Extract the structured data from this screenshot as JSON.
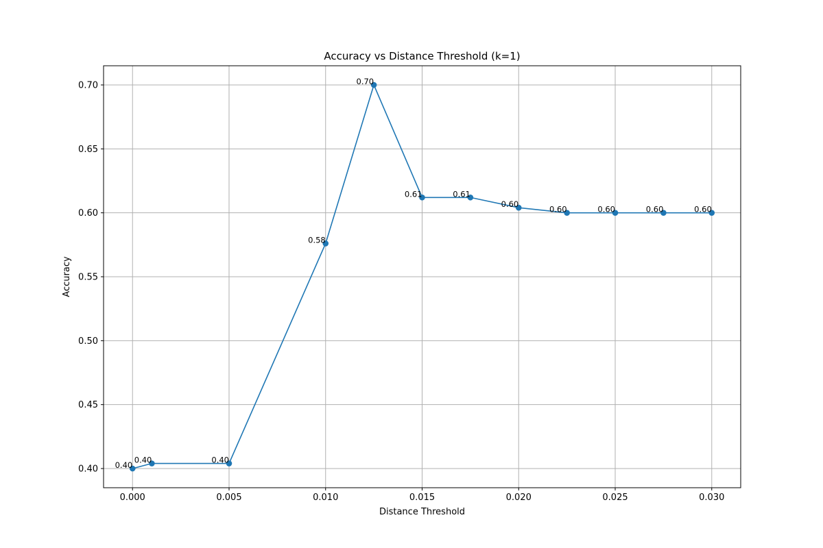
{
  "chart_data": {
    "type": "line",
    "title": "Accuracy vs Distance Threshold (k=1)",
    "xlabel": "Distance Threshold",
    "ylabel": "Accuracy",
    "xlim": [
      -0.0015,
      0.0315
    ],
    "ylim": [
      0.385,
      0.715
    ],
    "xticks": [
      0.0,
      0.005,
      0.01,
      0.015,
      0.02,
      0.025,
      0.03
    ],
    "xtick_labels": [
      "0.000",
      "0.005",
      "0.010",
      "0.015",
      "0.020",
      "0.025",
      "0.030"
    ],
    "yticks": [
      0.4,
      0.45,
      0.5,
      0.55,
      0.6,
      0.65,
      0.7
    ],
    "ytick_labels": [
      "0.40",
      "0.45",
      "0.50",
      "0.55",
      "0.60",
      "0.65",
      "0.70"
    ],
    "grid": true,
    "color": "#1f77b4",
    "series": [
      {
        "x": [
          0.0,
          0.001,
          0.005,
          0.01,
          0.0125,
          0.015,
          0.0175,
          0.02,
          0.0225,
          0.025,
          0.0275,
          0.03
        ],
        "y": [
          0.4,
          0.404,
          0.404,
          0.576,
          0.7,
          0.612,
          0.612,
          0.604,
          0.6,
          0.6,
          0.6,
          0.6
        ],
        "labels": [
          "0.40",
          "0.40",
          "0.40",
          "0.58",
          "0.70",
          "0.61",
          "0.61",
          "0.60",
          "0.60",
          "0.60",
          "0.60",
          "0.60"
        ]
      }
    ]
  }
}
